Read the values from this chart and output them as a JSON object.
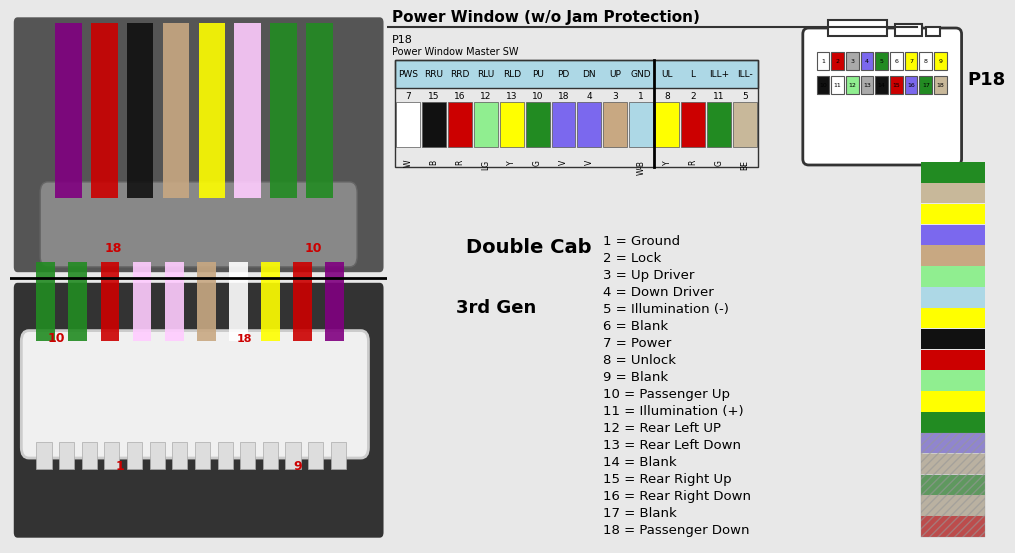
{
  "title": "Power Window (w/o Jam Protection)",
  "connector_label": "P18",
  "connector_sublabel": "Power Window Master SW",
  "p18_label": "P18",
  "header_bg": "#add8e6",
  "wire_columns": [
    {
      "label": "PWS",
      "pin": "7",
      "wire_letter": "W",
      "color": "#ffffff",
      "border": "#aaaaaa"
    },
    {
      "label": "RRU",
      "pin": "15",
      "wire_letter": "B",
      "color": "#111111",
      "border": "#111111"
    },
    {
      "label": "RRD",
      "pin": "16",
      "wire_letter": "R",
      "color": "#cc0000",
      "border": "#cc0000"
    },
    {
      "label": "RLU",
      "pin": "12",
      "wire_letter": "LG",
      "color": "#90ee90",
      "border": "#90ee90"
    },
    {
      "label": "RLD",
      "pin": "13",
      "wire_letter": "Y",
      "color": "#ffff00",
      "border": "#cccc00"
    },
    {
      "label": "PU",
      "pin": "10",
      "wire_letter": "G",
      "color": "#228B22",
      "border": "#228B22"
    },
    {
      "label": "PD",
      "pin": "18",
      "wire_letter": "V",
      "color": "#7B68EE",
      "border": "#7B68EE"
    },
    {
      "label": "DN",
      "pin": "4",
      "wire_letter": "V",
      "color": "#7B68EE",
      "border": "#7B68EE"
    },
    {
      "label": "UP",
      "pin": "3",
      "wire_letter": "",
      "color": "#c8a882",
      "border": "#c8a882"
    },
    {
      "label": "GND",
      "pin": "1",
      "wire_letter": "W-B",
      "color": "#add8e6",
      "border": "#add8e6"
    },
    {
      "label": "UL",
      "pin": "8",
      "wire_letter": "Y",
      "color": "#ffff00",
      "border": "#cccc00"
    },
    {
      "label": "L",
      "pin": "2",
      "wire_letter": "R",
      "color": "#cc0000",
      "border": "#cc0000"
    },
    {
      "label": "ILL+",
      "pin": "11",
      "wire_letter": "G",
      "color": "#228B22",
      "border": "#228B22"
    },
    {
      "label": "ILL-",
      "pin": "5",
      "wire_letter": "BE",
      "color": "#c8b89a",
      "border": "#c8b89a"
    }
  ],
  "pin_list": [
    "1 = Ground",
    "2 = Lock",
    "3 = Up Driver",
    "4 = Down Driver",
    "5 = Illumination (-)",
    "6 = Blank",
    "7 = Power",
    "8 = Unlock",
    "9 = Blank",
    "10 = Passenger Up",
    "11 = Illumination (+)",
    "12 = Rear Left UP",
    "13 = Rear Left Down",
    "14 = Blank",
    "15 = Rear Right Up",
    "16 = Rear Right Down",
    "17 = Blank",
    "18 = Passenger Down"
  ],
  "double_cab_label": "Double Cab",
  "gen_label": "3rd Gen",
  "top_wire_colors": [
    "#800080",
    "#cc0000",
    "#111111",
    "#c8a882",
    "#ffff00",
    "#ffccff",
    "#228B22",
    "#228B22"
  ],
  "bot_wire_colors": [
    "#228B22",
    "#228B22",
    "#cc0000",
    "#ffccff",
    "#ffccff",
    "#c8a882",
    "#ffffff",
    "#ffff00",
    "#cc0000",
    "#800080"
  ],
  "connector_top_pin_colors": [
    "#ffffff",
    "#cc0000",
    "#aaaaaa",
    "#7B68EE",
    "#228B22",
    "#ffffff",
    "#ffff00",
    "#ffffff",
    "#ffff00"
  ],
  "connector_bot_pin_colors": [
    "#111111",
    "#ffffff",
    "#90ee90",
    "#aaaaaa",
    "#111111",
    "#cc0000",
    "#7B68EE",
    "#228B22",
    "#c8b89a"
  ],
  "wire_strip_colors": [
    "#228B22",
    "#c8b89a",
    "#ffff00",
    "#7B68EE",
    "#c8a882",
    "#90ee90",
    "#add8e6",
    "#ffff00",
    "#111111",
    "#cc0000",
    "#90ee90",
    "#ffff00",
    "#228B22",
    "#7B68EE",
    "#c8b89a",
    "#228B22",
    "#c8b89a",
    "#cc0000"
  ]
}
